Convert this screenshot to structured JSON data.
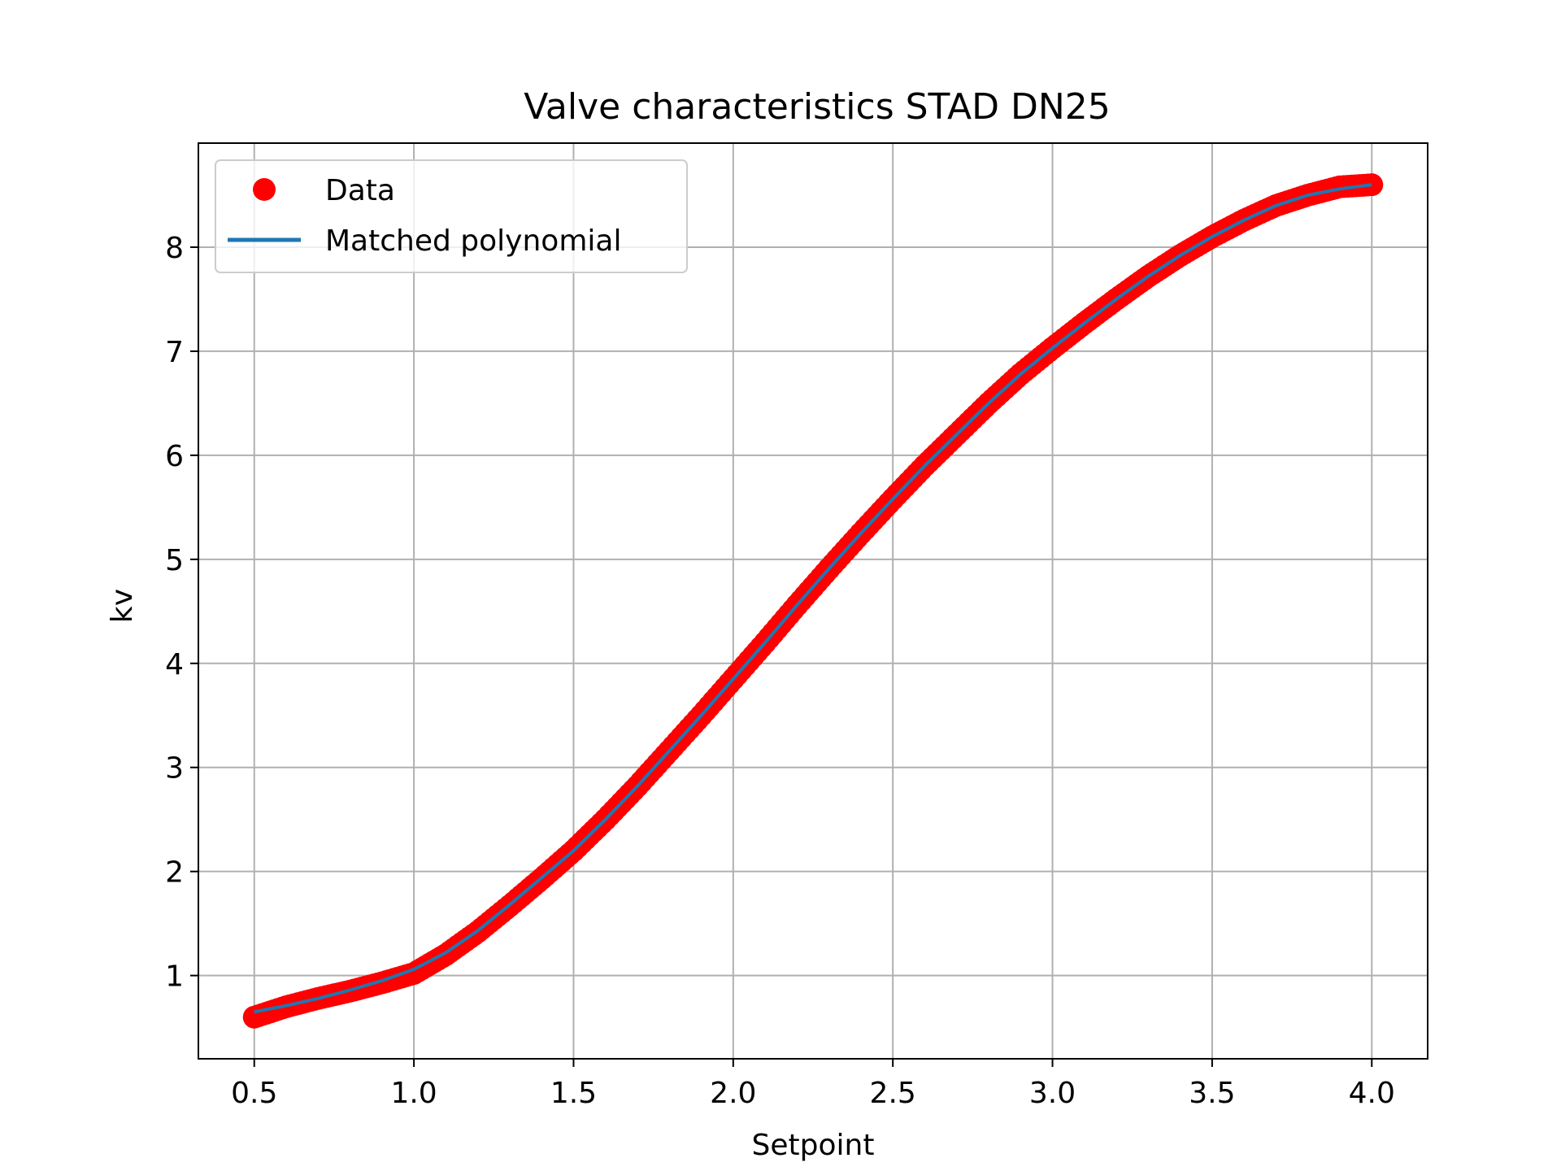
{
  "chart_data": {
    "type": "scatter",
    "title": "Valve characteristics STAD DN25",
    "xlabel": "Setpoint",
    "ylabel": "kv",
    "xlim": [
      0.325,
      4.175
    ],
    "ylim": [
      0.2,
      9.0
    ],
    "xticks": [
      "0.5",
      "1.0",
      "1.5",
      "2.0",
      "2.5",
      "3.0",
      "3.5",
      "4.0"
    ],
    "yticks": [
      "1",
      "2",
      "3",
      "4",
      "5",
      "6",
      "7",
      "8"
    ],
    "grid": true,
    "legend_position": "top-left",
    "series": [
      {
        "name": "Data",
        "kind": "scatter",
        "color": "#ff0000",
        "x": [
          0.5,
          0.6,
          0.7,
          0.8,
          0.9,
          1.0,
          1.1,
          1.2,
          1.3,
          1.4,
          1.5,
          1.6,
          1.7,
          1.8,
          1.9,
          2.0,
          2.1,
          2.2,
          2.3,
          2.4,
          2.5,
          2.6,
          2.7,
          2.8,
          2.9,
          3.0,
          3.1,
          3.2,
          3.3,
          3.4,
          3.5,
          3.6,
          3.7,
          3.8,
          3.9,
          4.0
        ],
        "y": [
          0.6,
          0.7,
          0.78,
          0.85,
          0.93,
          1.02,
          1.2,
          1.42,
          1.67,
          1.93,
          2.2,
          2.5,
          2.82,
          3.16,
          3.5,
          3.85,
          4.2,
          4.56,
          4.91,
          5.25,
          5.58,
          5.9,
          6.2,
          6.5,
          6.78,
          7.03,
          7.27,
          7.5,
          7.72,
          7.92,
          8.1,
          8.26,
          8.4,
          8.5,
          8.58,
          8.6
        ]
      },
      {
        "name": "Matched polynomial",
        "kind": "line",
        "color": "#1f77b4",
        "x": [
          0.5,
          0.6,
          0.7,
          0.8,
          0.9,
          1.0,
          1.1,
          1.2,
          1.3,
          1.4,
          1.5,
          1.6,
          1.7,
          1.8,
          1.9,
          2.0,
          2.1,
          2.2,
          2.3,
          2.4,
          2.5,
          2.6,
          2.7,
          2.8,
          2.9,
          3.0,
          3.1,
          3.2,
          3.3,
          3.4,
          3.5,
          3.6,
          3.7,
          3.8,
          3.9,
          4.0
        ],
        "y": [
          0.65,
          0.71,
          0.78,
          0.86,
          0.95,
          1.06,
          1.22,
          1.43,
          1.68,
          1.94,
          2.2,
          2.5,
          2.82,
          3.16,
          3.5,
          3.85,
          4.2,
          4.56,
          4.91,
          5.25,
          5.58,
          5.9,
          6.2,
          6.5,
          6.78,
          7.03,
          7.27,
          7.5,
          7.72,
          7.92,
          8.1,
          8.26,
          8.4,
          8.5,
          8.56,
          8.6
        ]
      }
    ]
  }
}
